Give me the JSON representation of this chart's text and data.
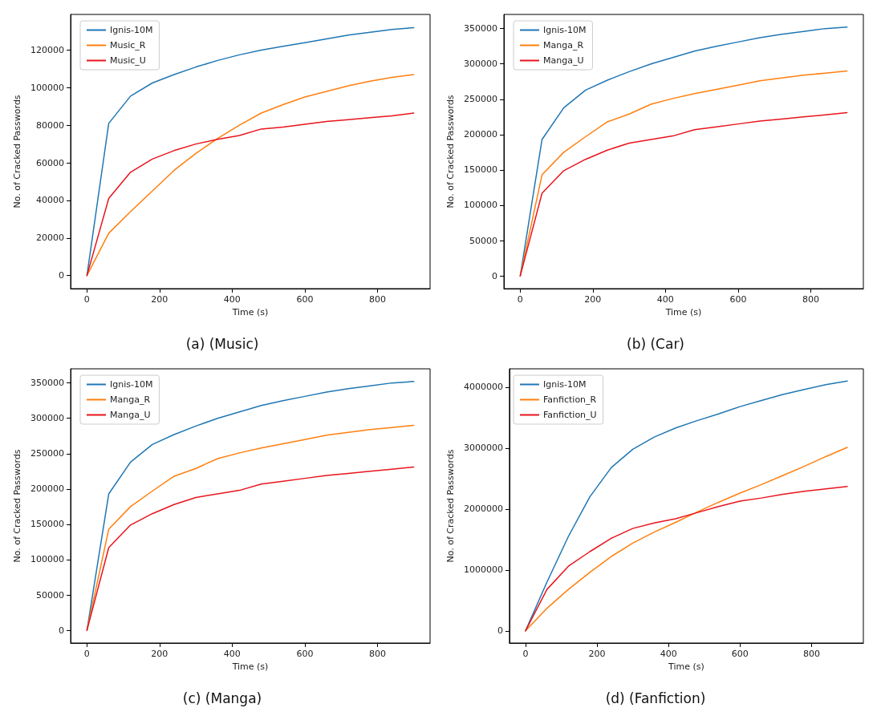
{
  "chart_data": [
    {
      "type": "line",
      "title": "(a) (Music)",
      "xlabel": "Time (s)",
      "ylabel": "No. of Cracked Passwords",
      "x": [
        0,
        60,
        120,
        180,
        240,
        300,
        360,
        420,
        480,
        540,
        600,
        660,
        720,
        780,
        840,
        900
      ],
      "xlim": [
        -45,
        945
      ],
      "xticks": [
        0,
        200,
        400,
        600,
        800
      ],
      "ylim": [
        -7000,
        139000
      ],
      "yticks": [
        0,
        20000,
        40000,
        60000,
        80000,
        100000,
        120000
      ],
      "grid": false,
      "legend": "top left",
      "marker": "none",
      "line_style": "solid",
      "series": [
        {
          "name": "Ignis-10M",
          "color": "#1f77b4",
          "values": [
            0,
            81000,
            95500,
            102500,
            107000,
            111000,
            114500,
            117500,
            120000,
            122000,
            124000,
            126000,
            128000,
            129500,
            131000,
            132000
          ]
        },
        {
          "name": "Music_R",
          "color": "#ff7f0e",
          "values": [
            0,
            22500,
            34000,
            45000,
            56000,
            65000,
            73000,
            80000,
            86500,
            91000,
            95000,
            98000,
            101000,
            103500,
            105500,
            107000
          ]
        },
        {
          "name": "Music_U",
          "color": "#e8141c",
          "values": [
            0,
            41000,
            55000,
            62000,
            66500,
            70000,
            72500,
            74500,
            78000,
            79000,
            80500,
            82000,
            83000,
            84000,
            85000,
            86500
          ]
        }
      ]
    },
    {
      "type": "line",
      "title": "(b) (Car)",
      "xlabel": "Time (s)",
      "ylabel": "No. of Cracked Passwords",
      "x": [
        0,
        60,
        120,
        180,
        240,
        300,
        360,
        420,
        480,
        540,
        600,
        660,
        720,
        780,
        840,
        900
      ],
      "xlim": [
        -45,
        945
      ],
      "xticks": [
        0,
        200,
        400,
        600,
        800
      ],
      "ylim": [
        -18000,
        370000
      ],
      "yticks": [
        0,
        50000,
        100000,
        150000,
        200000,
        250000,
        300000,
        350000
      ],
      "grid": false,
      "legend": "top left",
      "marker": "none",
      "line_style": "solid",
      "series": [
        {
          "name": "Ignis-10M",
          "color": "#1f77b4",
          "values": [
            0,
            193000,
            238000,
            263000,
            277000,
            289000,
            300000,
            309000,
            318000,
            325000,
            331000,
            337000,
            342000,
            346000,
            350000,
            352000
          ]
        },
        {
          "name": "Manga_R",
          "color": "#ff7f0e",
          "values": [
            0,
            143000,
            175000,
            197000,
            218000,
            229000,
            243000,
            251000,
            258000,
            264000,
            270000,
            276000,
            280000,
            284000,
            287000,
            290000
          ]
        },
        {
          "name": "Manga_U",
          "color": "#e8141c",
          "values": [
            0,
            117000,
            149000,
            165000,
            178000,
            188000,
            193000,
            198000,
            207000,
            211000,
            215000,
            219000,
            222000,
            225000,
            228000,
            231000
          ]
        }
      ]
    },
    {
      "type": "line",
      "title": "(c) (Manga)",
      "xlabel": "Time (s)",
      "ylabel": "No. of Cracked Passwords",
      "x": [
        0,
        60,
        120,
        180,
        240,
        300,
        360,
        420,
        480,
        540,
        600,
        660,
        720,
        780,
        840,
        900
      ],
      "xlim": [
        -45,
        945
      ],
      "xticks": [
        0,
        200,
        400,
        600,
        800
      ],
      "ylim": [
        -18000,
        370000
      ],
      "yticks": [
        0,
        50000,
        100000,
        150000,
        200000,
        250000,
        300000,
        350000
      ],
      "grid": false,
      "legend": "top left",
      "marker": "none",
      "line_style": "solid",
      "series": [
        {
          "name": "Ignis-10M",
          "color": "#1f77b4",
          "values": [
            0,
            193000,
            238000,
            263000,
            277000,
            289000,
            300000,
            309000,
            318000,
            325000,
            331000,
            337000,
            342000,
            346000,
            350000,
            352000
          ]
        },
        {
          "name": "Manga_R",
          "color": "#ff7f0e",
          "values": [
            0,
            143000,
            175000,
            197000,
            218000,
            229000,
            243000,
            251000,
            258000,
            264000,
            270000,
            276000,
            280000,
            284000,
            287000,
            290000
          ]
        },
        {
          "name": "Manga_U",
          "color": "#e8141c",
          "values": [
            0,
            117000,
            149000,
            165000,
            178000,
            188000,
            193000,
            198000,
            207000,
            211000,
            215000,
            219000,
            222000,
            225000,
            228000,
            231000
          ]
        }
      ]
    },
    {
      "type": "line",
      "title": "(d) (Fanfiction)",
      "xlabel": "Time (s)",
      "ylabel": "No. of Cracked Passwords",
      "x": [
        0,
        60,
        120,
        180,
        240,
        300,
        360,
        420,
        480,
        540,
        600,
        660,
        720,
        780,
        840,
        900
      ],
      "xlim": [
        -45,
        945
      ],
      "xticks": [
        0,
        200,
        400,
        600,
        800
      ],
      "ylim": [
        -200000,
        4300000
      ],
      "yticks": [
        0,
        1000000,
        2000000,
        3000000,
        4000000
      ],
      "grid": false,
      "legend": "top left",
      "marker": "none",
      "line_style": "solid",
      "series": [
        {
          "name": "Ignis-10M",
          "color": "#1f77b4",
          "values": [
            0,
            800000,
            1550000,
            2200000,
            2680000,
            2980000,
            3180000,
            3330000,
            3450000,
            3560000,
            3680000,
            3780000,
            3880000,
            3960000,
            4040000,
            4100000
          ]
        },
        {
          "name": "Fanfiction_R",
          "color": "#ff7f0e",
          "values": [
            0,
            370000,
            680000,
            960000,
            1220000,
            1440000,
            1620000,
            1780000,
            1950000,
            2110000,
            2260000,
            2400000,
            2550000,
            2700000,
            2860000,
            3010000
          ]
        },
        {
          "name": "Fanfiction_U",
          "color": "#e8141c",
          "values": [
            0,
            680000,
            1060000,
            1300000,
            1520000,
            1680000,
            1770000,
            1840000,
            1940000,
            2040000,
            2130000,
            2180000,
            2240000,
            2290000,
            2330000,
            2370000
          ]
        }
      ]
    }
  ]
}
